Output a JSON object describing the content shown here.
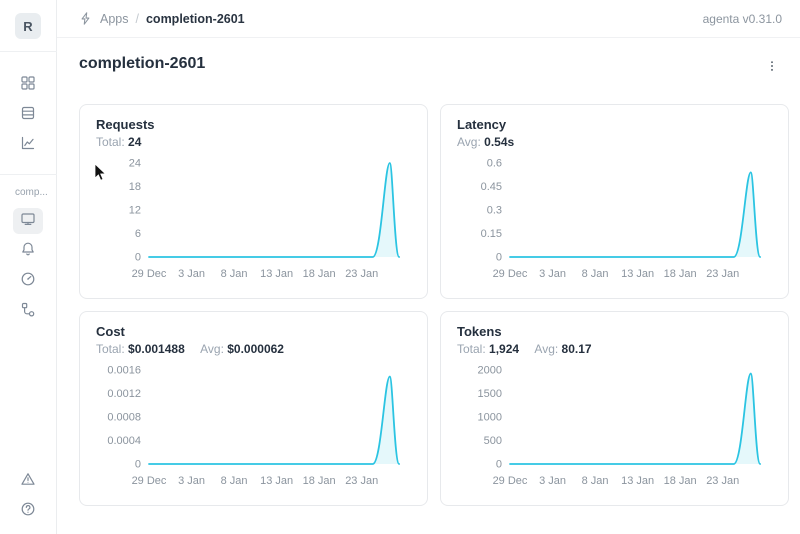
{
  "header": {
    "breadcrumb": {
      "icon": "lightning-icon",
      "app": "Apps",
      "separator": "/",
      "current": "completion-2601"
    },
    "version": "agenta v0.31.0"
  },
  "sidebar": {
    "avatar_initial": "R",
    "workspace_label": "comp...",
    "top_icons": [
      "apps-grid-icon",
      "registry-list-icon",
      "analytics-chart-icon"
    ],
    "app_icons": [
      "overview-monitor-icon",
      "notifications-bell-icon",
      "gauge-icon",
      "traces-tree-icon"
    ],
    "bottom_icons": [
      "warning-triangle-icon",
      "help-icon"
    ],
    "selected_item": "overview-monitor-icon"
  },
  "page": {
    "title": "completion-2601"
  },
  "colors": {
    "accent_line": "#2bc4e2",
    "tick_text": "#8b949e",
    "card_border": "#e7e9ec"
  },
  "chart_data": [
    {
      "type": "line",
      "title": "Requests",
      "stats": [
        {
          "label": "Total:",
          "value": "24"
        }
      ],
      "color": "#2bc4e2",
      "y_max": 24,
      "y_ticks": [
        "0",
        "6",
        "12",
        "18",
        "24"
      ],
      "x_ticks": [
        {
          "label": "29 Dec",
          "day": 0
        },
        {
          "label": "3 Jan",
          "day": 5
        },
        {
          "label": "8 Jan",
          "day": 10
        },
        {
          "label": "13 Jan",
          "day": 15
        },
        {
          "label": "18 Jan",
          "day": 20
        },
        {
          "label": "23 Jan",
          "day": 25
        }
      ],
      "domain_days": [
        0,
        29.5
      ],
      "series": [
        {
          "name": "requests",
          "baseline": 0,
          "spike": {
            "rise_day": 26.3,
            "peak_day": 28.3,
            "fall_day": 29.4,
            "peak_value": 24
          }
        }
      ]
    },
    {
      "type": "line",
      "title": "Latency",
      "stats": [
        {
          "label": "Avg:",
          "value": "0.54s"
        }
      ],
      "color": "#2bc4e2",
      "y_max": 0.6,
      "y_ticks": [
        "0",
        "0.15",
        "0.3",
        "0.45",
        "0.6"
      ],
      "x_ticks": [
        {
          "label": "29 Dec",
          "day": 0
        },
        {
          "label": "3 Jan",
          "day": 5
        },
        {
          "label": "8 Jan",
          "day": 10
        },
        {
          "label": "13 Jan",
          "day": 15
        },
        {
          "label": "18 Jan",
          "day": 20
        },
        {
          "label": "23 Jan",
          "day": 25
        }
      ],
      "domain_days": [
        0,
        29.5
      ],
      "series": [
        {
          "name": "latency",
          "baseline": 0,
          "spike": {
            "rise_day": 26.3,
            "peak_day": 28.3,
            "fall_day": 29.4,
            "peak_value": 0.54
          }
        }
      ]
    },
    {
      "type": "line",
      "title": "Cost",
      "stats": [
        {
          "label": "Total:",
          "value": "$0.001488"
        },
        {
          "label": "Avg:",
          "value": "$0.000062"
        }
      ],
      "color": "#2bc4e2",
      "y_max": 0.0016,
      "y_ticks": [
        "0",
        "0.0004",
        "0.0008",
        "0.0012",
        "0.0016"
      ],
      "x_ticks": [
        {
          "label": "29 Dec",
          "day": 0
        },
        {
          "label": "3 Jan",
          "day": 5
        },
        {
          "label": "8 Jan",
          "day": 10
        },
        {
          "label": "13 Jan",
          "day": 15
        },
        {
          "label": "18 Jan",
          "day": 20
        },
        {
          "label": "23 Jan",
          "day": 25
        }
      ],
      "domain_days": [
        0,
        29.5
      ],
      "series": [
        {
          "name": "cost",
          "baseline": 0,
          "spike": {
            "rise_day": 26.3,
            "peak_day": 28.3,
            "fall_day": 29.4,
            "peak_value": 0.001488
          }
        }
      ]
    },
    {
      "type": "line",
      "title": "Tokens",
      "stats": [
        {
          "label": "Total:",
          "value": "1,924"
        },
        {
          "label": "Avg:",
          "value": "80.17"
        }
      ],
      "color": "#2bc4e2",
      "y_max": 2000,
      "y_ticks": [
        "0",
        "500",
        "1000",
        "1500",
        "2000"
      ],
      "x_ticks": [
        {
          "label": "29 Dec",
          "day": 0
        },
        {
          "label": "3 Jan",
          "day": 5
        },
        {
          "label": "8 Jan",
          "day": 10
        },
        {
          "label": "13 Jan",
          "day": 15
        },
        {
          "label": "18 Jan",
          "day": 20
        },
        {
          "label": "23 Jan",
          "day": 25
        }
      ],
      "domain_days": [
        0,
        29.5
      ],
      "series": [
        {
          "name": "tokens",
          "baseline": 0,
          "spike": {
            "rise_day": 26.3,
            "peak_day": 28.3,
            "fall_day": 29.4,
            "peak_value": 1924
          }
        }
      ]
    }
  ]
}
